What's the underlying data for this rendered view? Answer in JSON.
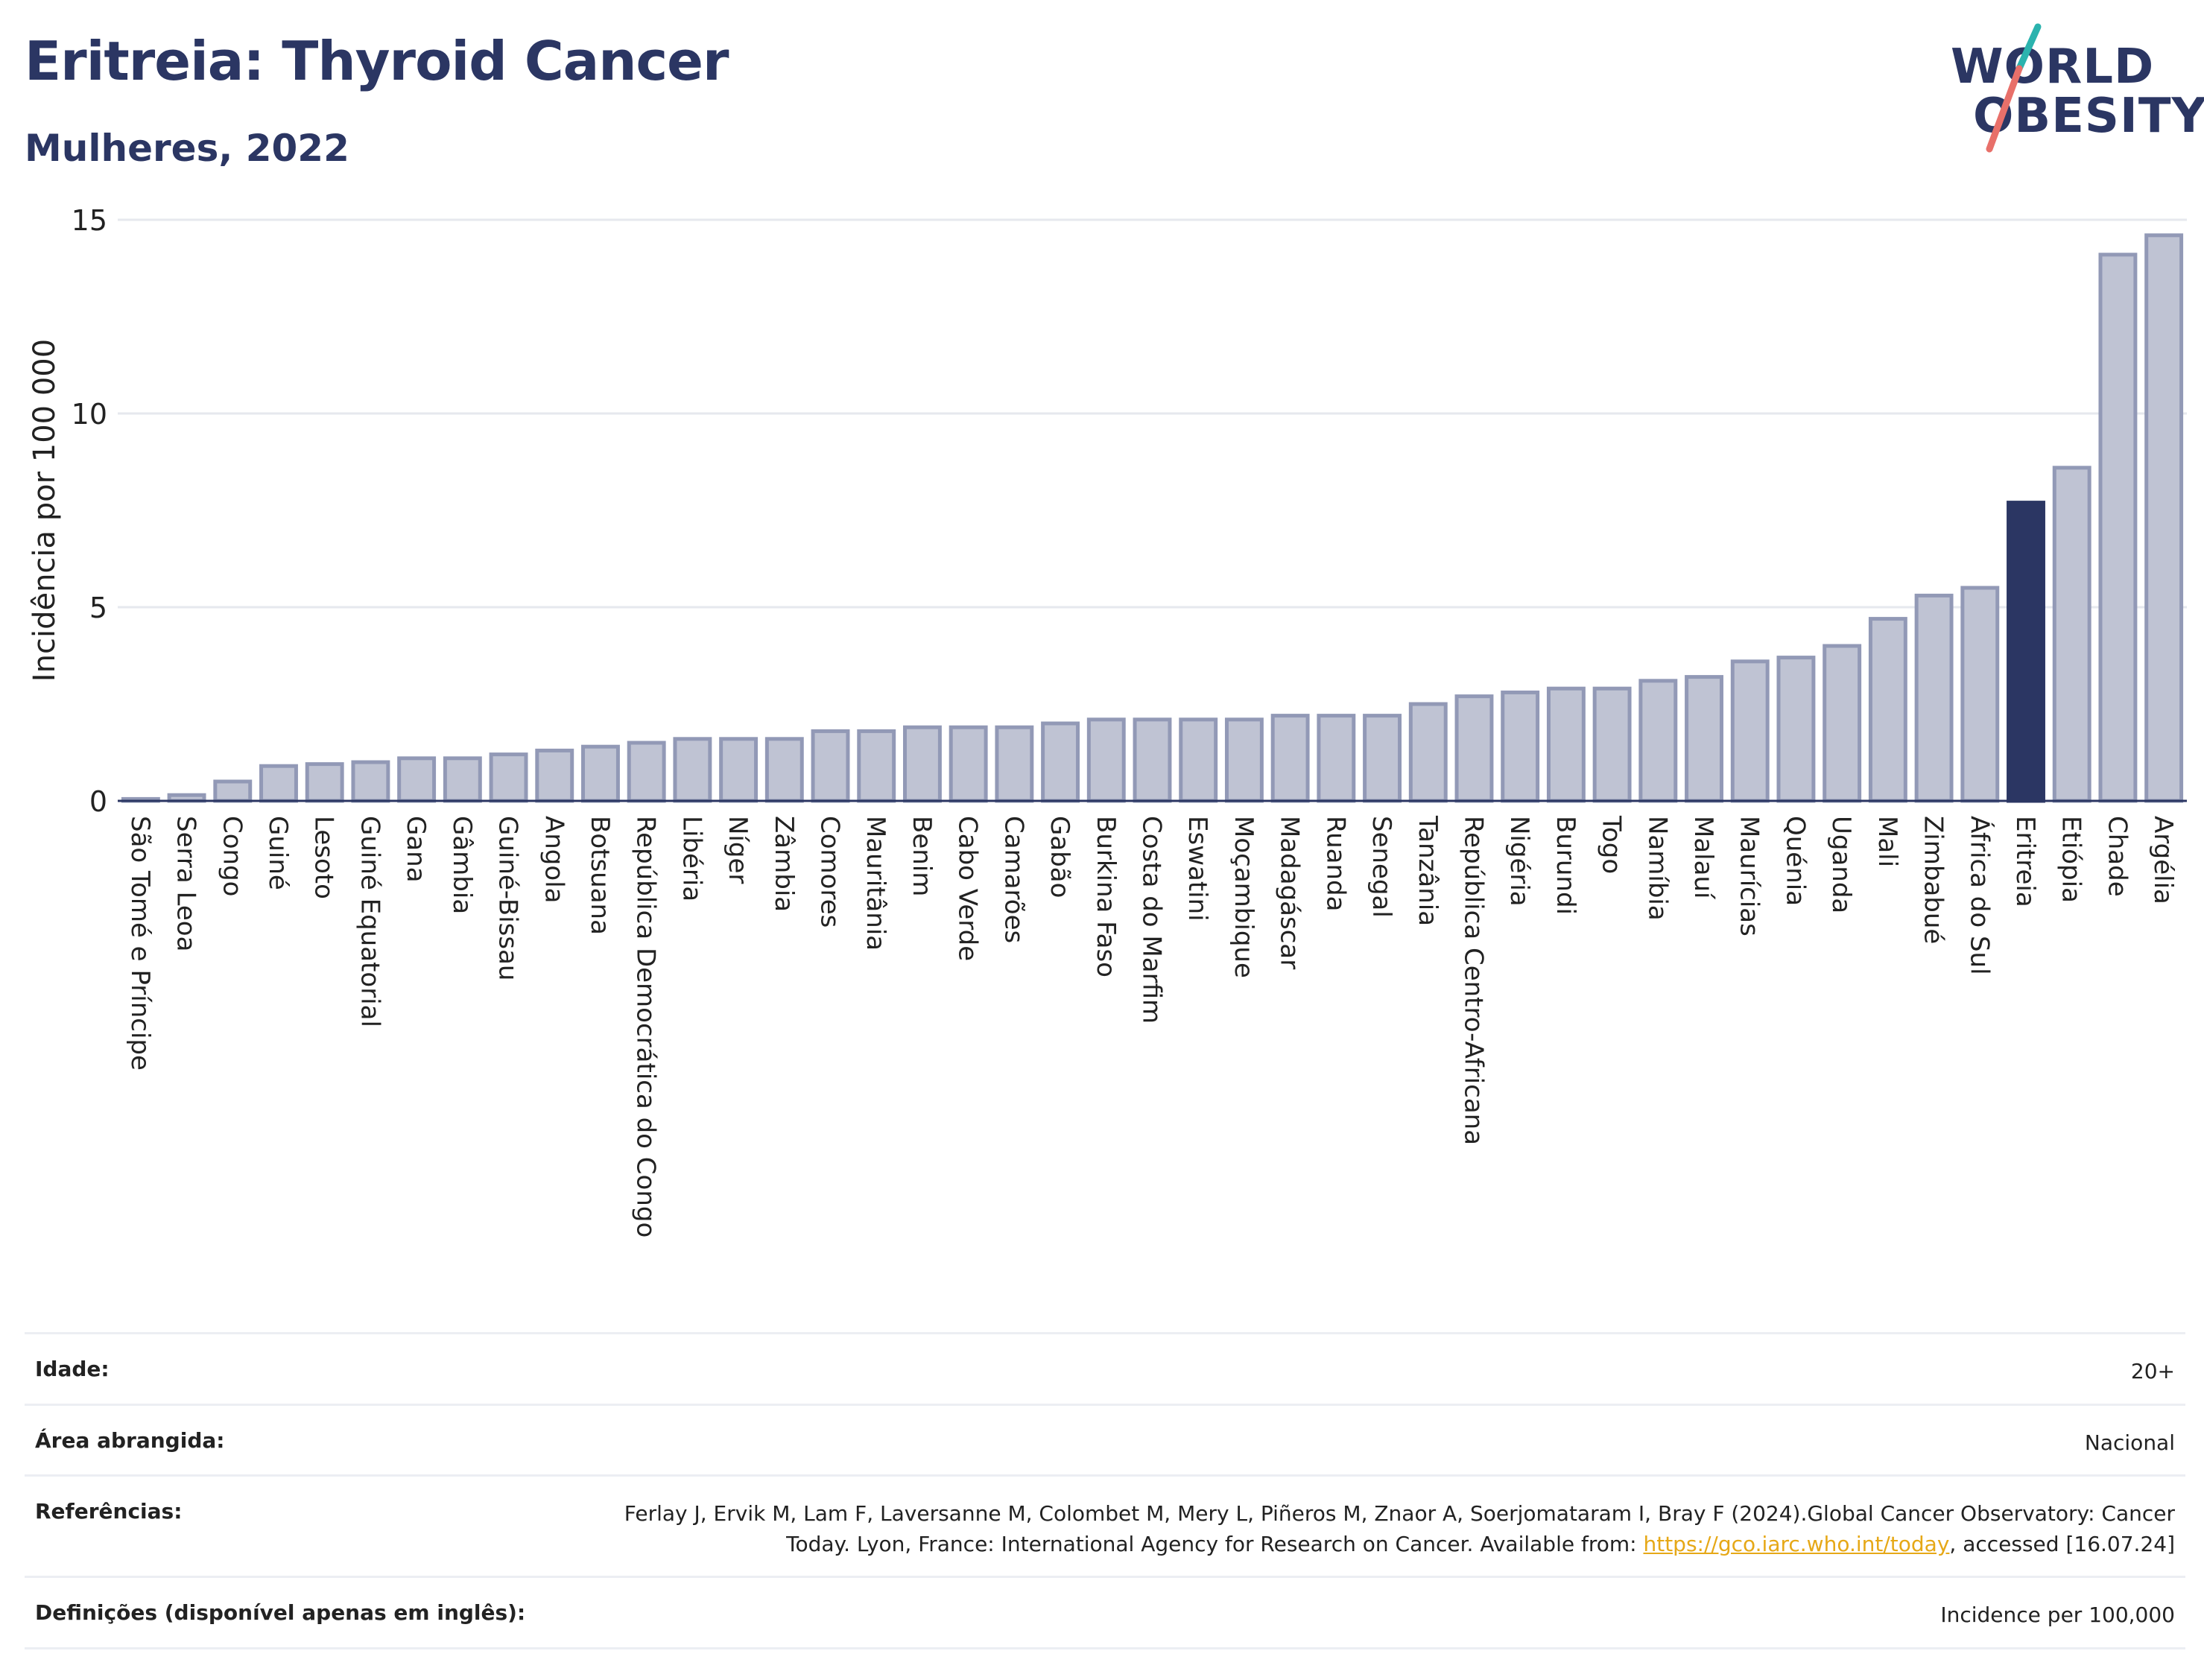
{
  "header": {
    "title": "Eritreia: Thyroid Cancer",
    "subtitle": "Mulheres, 2022"
  },
  "logo": {
    "line1": "WORLD",
    "line2": "OBESITY",
    "colors": {
      "text": "#2b3663",
      "stroke_top": "#2bb3ae",
      "stroke_bottom": "#e8706a"
    }
  },
  "colors": {
    "bar": "#bfc3d3",
    "bar_stroke": "#9299b6",
    "highlight": "#2b3663",
    "grid": "#e6e8ee",
    "axis": "#2b3663"
  },
  "chart_data": {
    "type": "bar",
    "ylabel": "Incidência por 100 000",
    "xlabel": "",
    "ylim": [
      0,
      15
    ],
    "yticks": [
      0,
      5,
      10,
      15
    ],
    "grid": true,
    "highlight": "Eritreia",
    "categories": [
      "São Tomé e Príncipe",
      "Serra Leoa",
      "Congo",
      "Guiné",
      "Lesoto",
      "Guiné Equatorial",
      "Gana",
      "Gâmbia",
      "Guiné-Bissau",
      "Angola",
      "Botsuana",
      "República Democrática do Congo",
      "Libéria",
      "Níger",
      "Zâmbia",
      "Comores",
      "Mauritânia",
      "Benim",
      "Cabo Verde",
      "Camarões",
      "Gabão",
      "Burkina Faso",
      "Costa do Marfim",
      "Eswatini",
      "Moçambique",
      "Madagáscar",
      "Ruanda",
      "Senegal",
      "Tanzânia",
      "República Centro-Africana",
      "Nigéria",
      "Burundi",
      "Togo",
      "Namíbia",
      "Malauí",
      "Maurícias",
      "Quénia",
      "Uganda",
      "Mali",
      "Zimbabué",
      "África do Sul",
      "Eritreia",
      "Etiópia",
      "Chade",
      "Argélia"
    ],
    "values": [
      0.05,
      0.15,
      0.5,
      0.9,
      0.95,
      1.0,
      1.1,
      1.1,
      1.2,
      1.3,
      1.4,
      1.5,
      1.6,
      1.6,
      1.6,
      1.8,
      1.8,
      1.9,
      1.9,
      1.9,
      2.0,
      2.1,
      2.1,
      2.1,
      2.1,
      2.2,
      2.2,
      2.2,
      2.5,
      2.7,
      2.8,
      2.9,
      2.9,
      3.1,
      3.2,
      3.6,
      3.7,
      4.0,
      4.7,
      5.3,
      5.5,
      7.7,
      8.6,
      14.1,
      14.6
    ]
  },
  "info": {
    "age_label": "Idade:",
    "age_value": "20+",
    "area_label": "Área abrangida:",
    "area_value": "Nacional",
    "ref_label": "Referências:",
    "ref_text": "Ferlay J, Ervik M, Lam F, Laversanne M, Colombet M, Mery L, Piñeros M, Znaor A, Soerjomataram I, Bray F (2024).Global Cancer Observatory: Cancer Today. Lyon, France: International Agency for Research on Cancer. Available from:",
    "ref_link": "https://gco.iarc.who.int/today",
    "ref_suffix": ", accessed [16.07.24]",
    "def_label": "Definições (disponível apenas em inglês):",
    "def_value": "Incidence per 100,000"
  }
}
